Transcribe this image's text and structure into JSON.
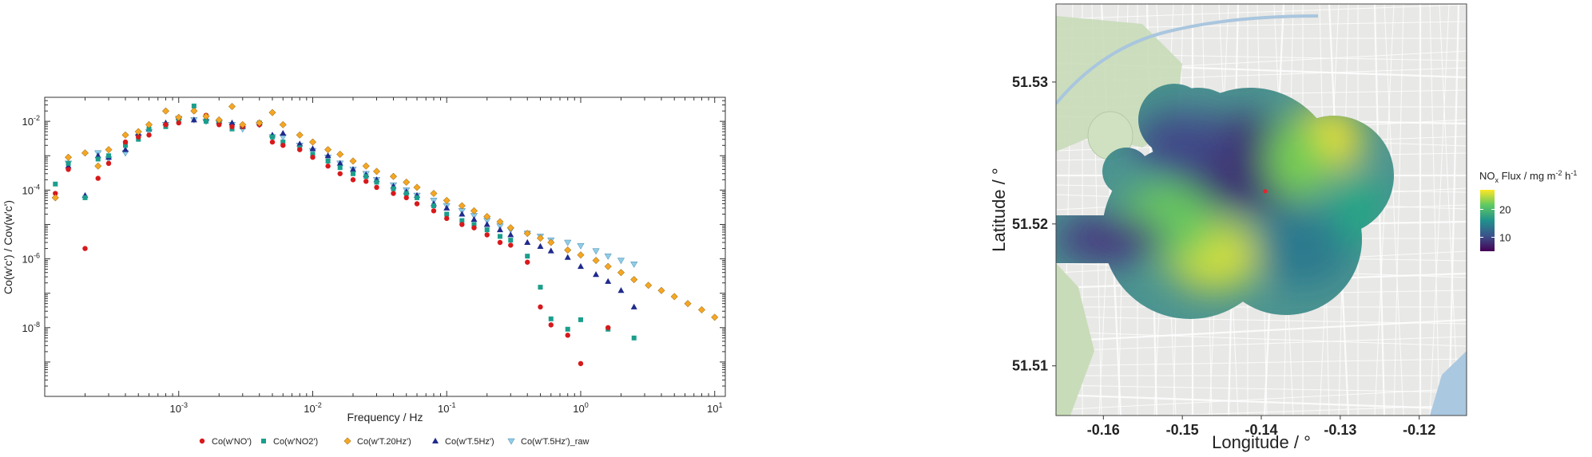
{
  "chart_data": [
    {
      "type": "scatter",
      "xlabel": "Frequency / Hz",
      "ylabel": "Co(w'c') / Cov(w'c')",
      "xscale": "log",
      "yscale": "log",
      "xlim": [
        0.0001,
        12
      ],
      "ylim": [
        1e-10,
        0.05
      ],
      "x_ticks": [
        {
          "value": 0.001,
          "base": "10",
          "exp": "-3"
        },
        {
          "value": 0.01,
          "base": "10",
          "exp": "-2"
        },
        {
          "value": 0.1,
          "base": "10",
          "exp": "-1"
        },
        {
          "value": 1,
          "base": "10",
          "exp": "0"
        },
        {
          "value": 10,
          "base": "10",
          "exp": "1"
        }
      ],
      "y_ticks": [
        {
          "value": 0.01,
          "base": "10",
          "exp": "-2"
        },
        {
          "value": 0.0001,
          "base": "10",
          "exp": "-4"
        },
        {
          "value": 1e-06,
          "base": "10",
          "exp": "-6"
        },
        {
          "value": 1e-08,
          "base": "10",
          "exp": "-8"
        }
      ],
      "legend_position": "bottom",
      "series": [
        {
          "name": "Co(w'NO')",
          "color": "#d7191c",
          "marker": "circle",
          "points": [
            [
              0.00012,
              8e-05
            ],
            [
              0.00015,
              0.0004
            ],
            [
              0.0002,
              2e-06
            ],
            [
              0.00025,
              0.00022
            ],
            [
              0.0003,
              0.0006
            ],
            [
              0.0004,
              0.0025
            ],
            [
              0.0005,
              0.0035
            ],
            [
              0.0006,
              0.004
            ],
            [
              0.0008,
              0.008
            ],
            [
              0.001,
              0.009
            ],
            [
              0.0013,
              0.02
            ],
            [
              0.0016,
              0.015
            ],
            [
              0.002,
              0.008
            ],
            [
              0.0025,
              0.007
            ],
            [
              0.003,
              0.007
            ],
            [
              0.004,
              0.008
            ],
            [
              0.005,
              0.0025
            ],
            [
              0.006,
              0.002
            ],
            [
              0.008,
              0.0015
            ],
            [
              0.01,
              0.0009
            ],
            [
              0.013,
              0.0005
            ],
            [
              0.016,
              0.0003
            ],
            [
              0.02,
              0.0002
            ],
            [
              0.025,
              0.00018
            ],
            [
              0.03,
              0.00012
            ],
            [
              0.04,
              8e-05
            ],
            [
              0.05,
              6e-05
            ],
            [
              0.06,
              4e-05
            ],
            [
              0.08,
              2.5e-05
            ],
            [
              0.1,
              1.5e-05
            ],
            [
              0.13,
              1e-05
            ],
            [
              0.16,
              8e-06
            ],
            [
              0.2,
              5e-06
            ],
            [
              0.25,
              3e-06
            ],
            [
              0.3,
              2.5e-06
            ],
            [
              0.4,
              8e-07
            ],
            [
              0.5,
              4e-08
            ],
            [
              0.6,
              1.2e-08
            ],
            [
              0.8,
              6e-09
            ],
            [
              1.0,
              9e-10
            ],
            [
              1.6,
              1e-08
            ]
          ]
        },
        {
          "name": "Co(w'NO2')",
          "color": "#1b9e8c",
          "marker": "square",
          "points": [
            [
              0.00012,
              0.00015
            ],
            [
              0.00015,
              0.0006
            ],
            [
              0.0002,
              6e-05
            ],
            [
              0.00025,
              0.0008
            ],
            [
              0.0003,
              0.001
            ],
            [
              0.0004,
              0.002
            ],
            [
              0.0005,
              0.003
            ],
            [
              0.0006,
              0.006
            ],
            [
              0.0008,
              0.007
            ],
            [
              0.001,
              0.011
            ],
            [
              0.0013,
              0.028
            ],
            [
              0.0016,
              0.01
            ],
            [
              0.002,
              0.009
            ],
            [
              0.0025,
              0.006
            ],
            [
              0.003,
              0.007
            ],
            [
              0.004,
              0.009
            ],
            [
              0.005,
              0.0035
            ],
            [
              0.006,
              0.0025
            ],
            [
              0.008,
              0.0017
            ],
            [
              0.01,
              0.0011
            ],
            [
              0.013,
              0.0007
            ],
            [
              0.016,
              0.00045
            ],
            [
              0.02,
              0.0003
            ],
            [
              0.025,
              0.00025
            ],
            [
              0.03,
              0.00017
            ],
            [
              0.04,
              0.00011
            ],
            [
              0.05,
              8e-05
            ],
            [
              0.06,
              6e-05
            ],
            [
              0.08,
              3.5e-05
            ],
            [
              0.1,
              2e-05
            ],
            [
              0.13,
              1.3e-05
            ],
            [
              0.16,
              1e-05
            ],
            [
              0.2,
              7e-06
            ],
            [
              0.25,
              4.5e-06
            ],
            [
              0.3,
              3.5e-06
            ],
            [
              0.4,
              1.2e-06
            ],
            [
              0.5,
              1.5e-07
            ],
            [
              0.6,
              1.8e-08
            ],
            [
              0.8,
              9e-09
            ],
            [
              1.0,
              1.7e-08
            ],
            [
              1.6,
              9e-09
            ],
            [
              2.5,
              5e-09
            ]
          ]
        },
        {
          "name": "Co(w'T.20Hz')",
          "color": "#f5a623",
          "marker": "diamond",
          "points": [
            [
              0.00012,
              6e-05
            ],
            [
              0.00015,
              0.0009
            ],
            [
              0.0002,
              0.0012
            ],
            [
              0.00025,
              0.0005
            ],
            [
              0.0003,
              0.0015
            ],
            [
              0.0004,
              0.004
            ],
            [
              0.0005,
              0.005
            ],
            [
              0.0006,
              0.008
            ],
            [
              0.0008,
              0.02
            ],
            [
              0.001,
              0.013
            ],
            [
              0.0013,
              0.02
            ],
            [
              0.0016,
              0.014
            ],
            [
              0.002,
              0.011
            ],
            [
              0.0025,
              0.027
            ],
            [
              0.003,
              0.008
            ],
            [
              0.004,
              0.009
            ],
            [
              0.005,
              0.018
            ],
            [
              0.006,
              0.008
            ],
            [
              0.008,
              0.004
            ],
            [
              0.01,
              0.0025
            ],
            [
              0.013,
              0.0015
            ],
            [
              0.016,
              0.0011
            ],
            [
              0.02,
              0.0007
            ],
            [
              0.025,
              0.0005
            ],
            [
              0.03,
              0.00035
            ],
            [
              0.04,
              0.00025
            ],
            [
              0.05,
              0.00017
            ],
            [
              0.06,
              0.00012
            ],
            [
              0.08,
              8e-05
            ],
            [
              0.1,
              5e-05
            ],
            [
              0.13,
              3.5e-05
            ],
            [
              0.16,
              2.5e-05
            ],
            [
              0.2,
              1.7e-05
            ],
            [
              0.25,
              1.2e-05
            ],
            [
              0.3,
              8e-06
            ],
            [
              0.4,
              5.5e-06
            ],
            [
              0.5,
              4e-06
            ],
            [
              0.6,
              3e-06
            ],
            [
              0.8,
              1.8e-06
            ],
            [
              1.0,
              1.3e-06
            ],
            [
              1.3,
              9e-07
            ],
            [
              1.6,
              6e-07
            ],
            [
              2.0,
              4e-07
            ],
            [
              2.5,
              2.5e-07
            ],
            [
              3.2,
              1.7e-07
            ],
            [
              4.0,
              1.2e-07
            ],
            [
              5.0,
              8e-08
            ],
            [
              6.3,
              5e-08
            ],
            [
              8.0,
              3.3e-08
            ],
            [
              10.0,
              2e-08
            ]
          ]
        },
        {
          "name": "Co(w'T.5Hz')",
          "color": "#1f2a8c",
          "marker": "triangle-up",
          "points": [
            [
              0.00015,
              0.0005
            ],
            [
              0.0002,
              7e-05
            ],
            [
              0.00025,
              0.001
            ],
            [
              0.0003,
              0.0009
            ],
            [
              0.0004,
              0.0015
            ],
            [
              0.0005,
              0.0045
            ],
            [
              0.0006,
              0.006
            ],
            [
              0.0008,
              0.009
            ],
            [
              0.001,
              0.013
            ],
            [
              0.0013,
              0.011
            ],
            [
              0.0016,
              0.012
            ],
            [
              0.002,
              0.01
            ],
            [
              0.0025,
              0.009
            ],
            [
              0.003,
              0.007
            ],
            [
              0.004,
              0.009
            ],
            [
              0.005,
              0.004
            ],
            [
              0.006,
              0.0045
            ],
            [
              0.008,
              0.0022
            ],
            [
              0.01,
              0.0016
            ],
            [
              0.013,
              0.001
            ],
            [
              0.016,
              0.0006
            ],
            [
              0.02,
              0.0004
            ],
            [
              0.025,
              0.00028
            ],
            [
              0.03,
              0.0002
            ],
            [
              0.04,
              0.00013
            ],
            [
              0.05,
              9e-05
            ],
            [
              0.06,
              7e-05
            ],
            [
              0.08,
              4e-05
            ],
            [
              0.1,
              3e-05
            ],
            [
              0.13,
              2e-05
            ],
            [
              0.16,
              1.4e-05
            ],
            [
              0.2,
              1e-05
            ],
            [
              0.25,
              7e-06
            ],
            [
              0.3,
              5e-06
            ],
            [
              0.4,
              3e-06
            ],
            [
              0.5,
              2.3e-06
            ],
            [
              0.6,
              1.7e-06
            ],
            [
              0.8,
              1.1e-06
            ],
            [
              1.0,
              6e-07
            ],
            [
              1.3,
              3.5e-07
            ],
            [
              1.6,
              2.2e-07
            ],
            [
              2.0,
              1.2e-07
            ],
            [
              2.5,
              4e-08
            ]
          ]
        },
        {
          "name": "Co(w'T.5Hz')_raw",
          "color": "#8ecde8",
          "marker": "triangle-down",
          "points": [
            [
              0.00015,
              0.0006
            ],
            [
              0.00025,
              0.0012
            ],
            [
              0.0003,
              0.0008
            ],
            [
              0.0004,
              0.0012
            ],
            [
              0.0005,
              0.0035
            ],
            [
              0.0006,
              0.005
            ],
            [
              0.0008,
              0.008
            ],
            [
              0.001,
              0.012
            ],
            [
              0.0013,
              0.011
            ],
            [
              0.0016,
              0.01
            ],
            [
              0.002,
              0.009
            ],
            [
              0.0025,
              0.008
            ],
            [
              0.003,
              0.006
            ],
            [
              0.004,
              0.008
            ],
            [
              0.005,
              0.0035
            ],
            [
              0.006,
              0.0035
            ],
            [
              0.008,
              0.002
            ],
            [
              0.01,
              0.0014
            ],
            [
              0.013,
              0.0009
            ],
            [
              0.016,
              0.0006
            ],
            [
              0.02,
              0.0004
            ],
            [
              0.025,
              0.0003
            ],
            [
              0.03,
              0.0002
            ],
            [
              0.04,
              0.00014
            ],
            [
              0.05,
              0.0001
            ],
            [
              0.06,
              7e-05
            ],
            [
              0.08,
              5e-05
            ],
            [
              0.1,
              3.5e-05
            ],
            [
              0.13,
              2.5e-05
            ],
            [
              0.16,
              1.8e-05
            ],
            [
              0.2,
              1.3e-05
            ],
            [
              0.25,
              9e-06
            ],
            [
              0.3,
              7e-06
            ],
            [
              0.4,
              5.5e-06
            ],
            [
              0.5,
              4.5e-06
            ],
            [
              0.6,
              3.5e-06
            ],
            [
              0.8,
              3e-06
            ],
            [
              1.0,
              2.4e-06
            ],
            [
              1.3,
              1.7e-06
            ],
            [
              1.6,
              1.2e-06
            ],
            [
              2.0,
              9e-07
            ],
            [
              2.5,
              7e-07
            ]
          ]
        }
      ]
    },
    {
      "type": "heatmap",
      "xlabel": "Longitude / °",
      "ylabel": "Latitude / °",
      "xlim": [
        -0.166,
        -0.114
      ],
      "ylim": [
        51.5065,
        51.5355
      ],
      "x_ticks": [
        "-0.16",
        "-0.15",
        "-0.14",
        "-0.13",
        "-0.12"
      ],
      "x_tick_values": [
        -0.16,
        -0.15,
        -0.14,
        -0.13,
        -0.12
      ],
      "y_ticks": [
        "51.53",
        "51.52",
        "51.51"
      ],
      "y_tick_values": [
        51.53,
        51.52,
        51.51
      ],
      "colorbar": {
        "label_main": "NO",
        "label_sub": "x",
        "label_rest": " Flux / mg m",
        "label_exp1": "-2",
        "label_h": " h",
        "label_exp2": "-1",
        "ticks": [
          "20",
          "10"
        ],
        "tick_values": [
          20,
          10
        ],
        "range": [
          5,
          27
        ],
        "colormap": "viridis"
      },
      "hotspots": [
        {
          "lon": -0.1305,
          "lat": 51.5265,
          "value": 27
        },
        {
          "lon": -0.1435,
          "lat": 51.5165,
          "value": 25
        },
        {
          "lon": -0.152,
          "lat": 51.5205,
          "value": 20
        },
        {
          "lon": -0.141,
          "lat": 51.5245,
          "value": 6
        },
        {
          "lon": -0.161,
          "lat": 51.5198,
          "value": 6
        }
      ],
      "marker": {
        "lon": -0.1395,
        "lat": 51.5223,
        "color": "#e3242b"
      }
    }
  ]
}
